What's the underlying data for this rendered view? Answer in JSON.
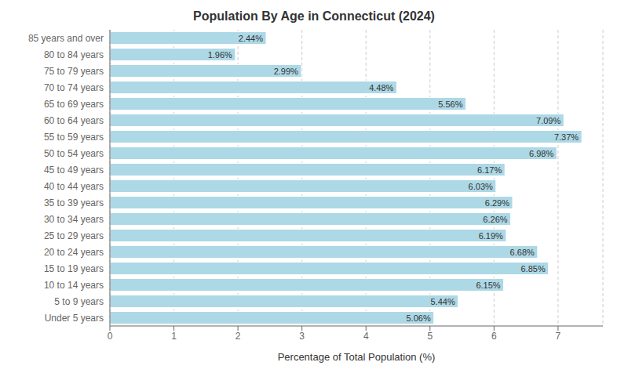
{
  "chart_data": {
    "type": "bar",
    "orientation": "horizontal",
    "title": "Population By Age in Connecticut (2024)",
    "xlabel": "Percentage of Total Population (%)",
    "categories": [
      "85 years and over",
      "80 to 84 years",
      "75 to 79 years",
      "70 to 74 years",
      "65 to 69 years",
      "60 to 64 years",
      "55 to 59 years",
      "50 to 54 years",
      "45 to 49 years",
      "40 to 44 years",
      "35 to 39 years",
      "30 to 34 years",
      "25 to 29 years",
      "20 to 24 years",
      "15 to 19 years",
      "10 to 14 years",
      "5 to 9 years",
      "Under 5 years"
    ],
    "values": [
      2.44,
      1.96,
      2.99,
      4.48,
      5.56,
      7.09,
      7.37,
      6.98,
      6.17,
      6.03,
      6.29,
      6.26,
      6.19,
      6.68,
      6.85,
      6.15,
      5.44,
      5.06
    ],
    "value_labels": [
      "2.44%",
      "1.96%",
      "2.99%",
      "4.48%",
      "5.56%",
      "7.09%",
      "7.37%",
      "6.98%",
      "6.17%",
      "6.03%",
      "6.29%",
      "6.26%",
      "6.19%",
      "6.68%",
      "6.85%",
      "6.15%",
      "5.44%",
      "5.06%"
    ],
    "data_labels": true,
    "color": "#ADD8E6",
    "xlim": [
      0,
      7.7
    ],
    "xticks": [
      0,
      1,
      2,
      3,
      4,
      5,
      6,
      7
    ],
    "grid": true
  }
}
